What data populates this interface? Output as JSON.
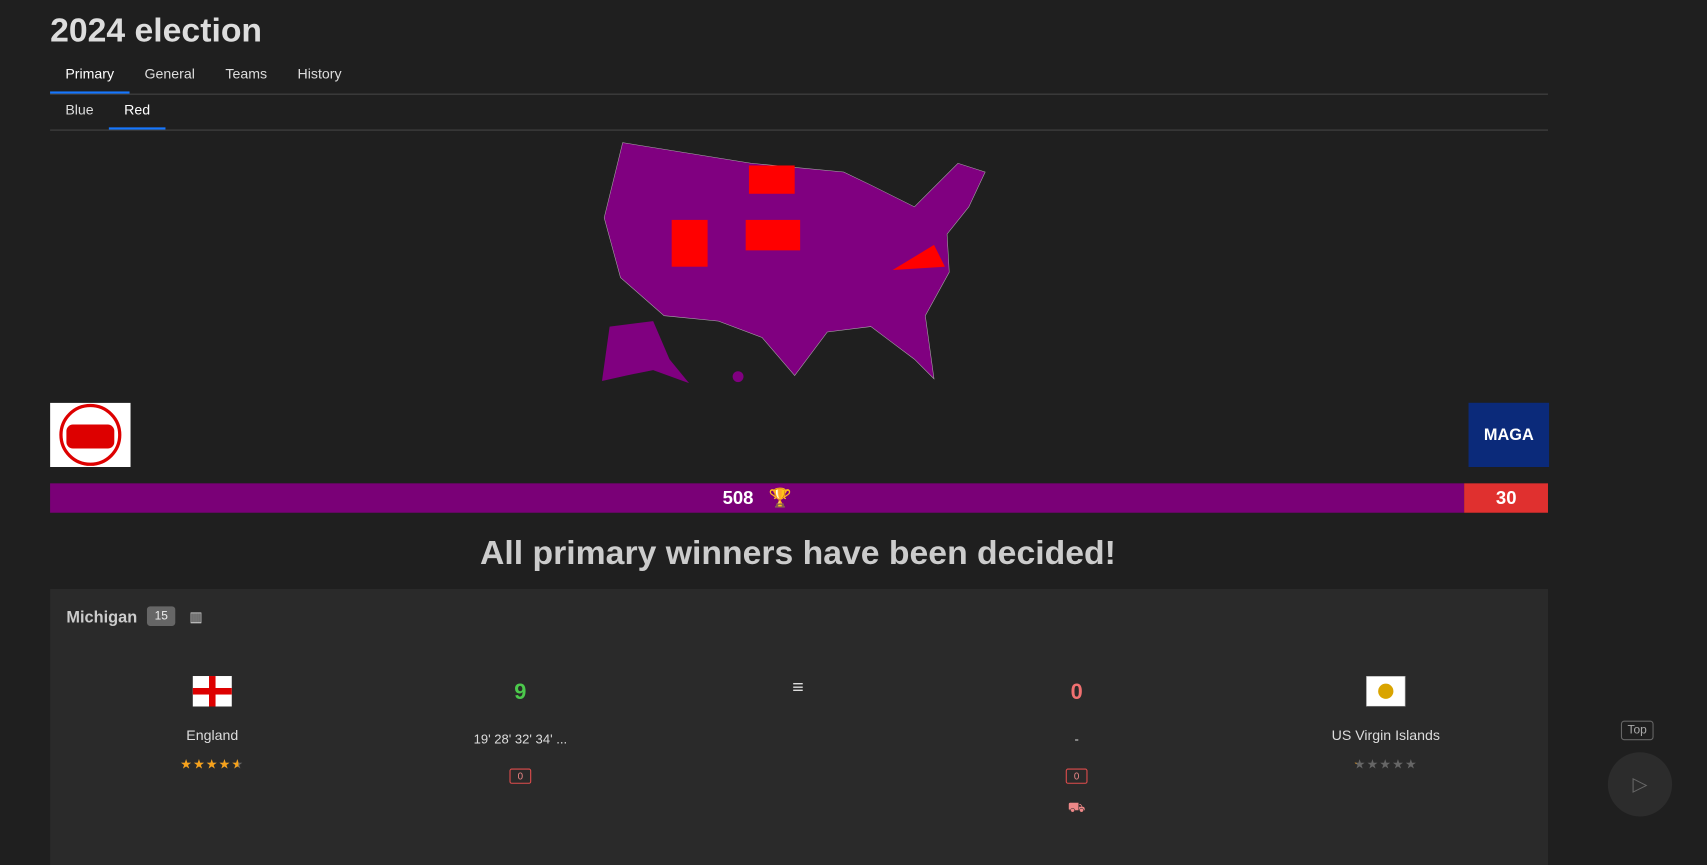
{
  "header": {
    "title": "2024 election",
    "tabs": [
      "Primary",
      "General",
      "Teams",
      "History"
    ],
    "subtabs": [
      "Blue",
      "Red"
    ]
  },
  "logo": {
    "text": "MAGA"
  },
  "score": {
    "left": 508,
    "right": 30
  },
  "message": "All primary winners have been decided!",
  "match": {
    "state": "Michigan",
    "count": 15,
    "home": {
      "name": "England",
      "rating": 4.5,
      "score": 9,
      "times": "19' 28' 32' 34' ...",
      "badge": 0
    },
    "away": {
      "name": "US Virgin Islands",
      "rating": 0.2,
      "score": 0,
      "times": "-",
      "badge": 0
    }
  },
  "top": "Top"
}
